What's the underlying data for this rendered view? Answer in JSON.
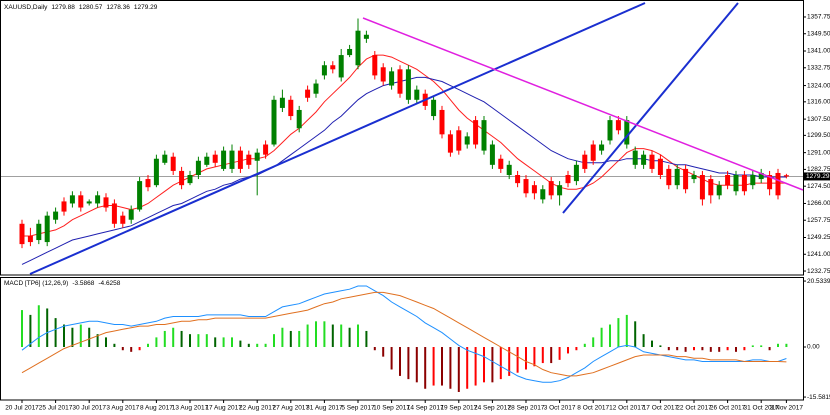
{
  "chart_data": [
    {
      "type": "candlestick",
      "title": "XAUUSD,Daily",
      "categories": [
        "20 Jul 2017",
        null,
        null,
        null,
        "25 Jul 2017",
        null,
        null,
        null,
        "30 Jul 2017",
        null,
        null,
        null,
        "3 Aug 2017",
        null,
        null,
        null,
        "8 Aug 2017",
        null,
        null,
        null,
        "13 Aug 2017",
        null,
        null,
        null,
        "17 Aug 2017",
        null,
        null,
        null,
        "22 Aug 2017",
        null,
        null,
        null,
        "27 Aug 2017",
        null,
        null,
        null,
        "31 Aug 2017",
        null,
        null,
        null,
        "5 Sep 2017",
        null,
        null,
        null,
        "10 Sep 2017",
        null,
        null,
        null,
        "14 Sep 2017",
        null,
        null,
        null,
        "19 Sep 2017",
        null,
        null,
        null,
        "24 Sep 2017",
        null,
        null,
        null,
        "28 Sep 2017",
        null,
        null,
        null,
        "3 Oct 2017",
        null,
        null,
        null,
        "8 Oct 2017",
        null,
        null,
        null,
        "12 Oct 2017",
        null,
        null,
        null,
        "17 Oct 2017",
        null,
        null,
        null,
        "22 Oct 2017",
        null,
        null,
        null,
        "26 Oct 2017",
        null,
        null,
        null,
        "31 Oct 2017",
        null,
        null,
        "3 Nov 2017"
      ],
      "open": [
        1256,
        1250,
        1248,
        1247,
        1258,
        1267,
        1266,
        1270,
        1266,
        1266,
        1269,
        1266,
        1260,
        1258,
        1263,
        1278,
        1275,
        1286,
        1289,
        1282,
        1276,
        1280,
        1285,
        1290,
        1283,
        1283,
        1292,
        1290,
        1287,
        1295,
        1295,
        1313,
        1317,
        1303,
        1322,
        1320,
        1329,
        1334,
        1328,
        1339,
        1334,
        1347,
        1339,
        1333,
        1324,
        1332,
        1317,
        1317,
        1320,
        1309,
        1312,
        1300,
        1302,
        1295,
        1307,
        1292,
        1285,
        1288,
        1280,
        1280,
        1278,
        1275,
        1268,
        1277,
        1270,
        1280,
        1277,
        1290,
        1295,
        1292,
        1297,
        1307,
        1295,
        1285,
        1285,
        1290,
        1288,
        1283,
        1275,
        1283,
        1278,
        1280,
        1278,
        1270,
        1280,
        1272,
        1280,
        1275,
        1278,
        1280,
        1281,
        1279.88
      ],
      "high": [
        1258,
        1254,
        1258,
        1262,
        1264,
        1269,
        1272,
        1272,
        1268,
        1272,
        1271,
        1268,
        1262,
        1265,
        1279,
        1280,
        1290,
        1292,
        1291,
        1284,
        1282,
        1289,
        1291,
        1292,
        1294,
        1295,
        1294,
        1292,
        1293,
        1297,
        1319,
        1322,
        1319,
        1314,
        1324,
        1327,
        1336,
        1336,
        1342,
        1344,
        1357,
        1351,
        1341,
        1335,
        1333,
        1334,
        1334,
        1324,
        1322,
        1319,
        1314,
        1302,
        1304,
        1301,
        1309,
        1309,
        1297,
        1290,
        1287,
        1282,
        1280,
        1277,
        1275,
        1279,
        1277,
        1282,
        1287,
        1292,
        1297,
        1297,
        1309,
        1309,
        1309,
        1294,
        1292,
        1292,
        1290,
        1285,
        1285,
        1285,
        1282,
        1282,
        1280,
        1277,
        1282,
        1282,
        1282,
        1282,
        1283,
        1282,
        1283,
        1280.57
      ],
      "low": [
        1244,
        1245,
        1246,
        1245,
        1256,
        1260,
        1264,
        1262,
        1265,
        1264,
        1262,
        1254,
        1254,
        1256,
        1262,
        1272,
        1274,
        1285,
        1280,
        1273,
        1275,
        1278,
        1284,
        1284,
        1282,
        1281,
        1281,
        1283,
        1270,
        1288,
        1294,
        1311,
        1307,
        1301,
        1316,
        1318,
        1327,
        1330,
        1326,
        1338,
        1332,
        1345,
        1327,
        1324,
        1322,
        1318,
        1315,
        1315,
        1312,
        1307,
        1298,
        1289,
        1290,
        1293,
        1293,
        1290,
        1283,
        1281,
        1278,
        1274,
        1269,
        1268,
        1266,
        1268,
        1265,
        1274,
        1275,
        1281,
        1285,
        1290,
        1295,
        1300,
        1293,
        1283,
        1283,
        1281,
        1278,
        1273,
        1273,
        1271,
        1276,
        1265,
        1266,
        1268,
        1273,
        1270,
        1270,
        1273,
        1276,
        1270,
        1268,
        1278.36
      ],
      "close": [
        1246,
        1247,
        1256,
        1260,
        1262,
        1262,
        1270,
        1264,
        1267,
        1270,
        1264,
        1256,
        1256,
        1263,
        1277,
        1274,
        1288,
        1290,
        1282,
        1275,
        1280,
        1287,
        1289,
        1286,
        1292,
        1292,
        1283,
        1285,
        1291,
        1290,
        1317,
        1318,
        1309,
        1312,
        1318,
        1325,
        1334,
        1332,
        1339,
        1342,
        1351,
        1349,
        1329,
        1326,
        1331,
        1320,
        1332,
        1322,
        1314,
        1317,
        1300,
        1291,
        1292,
        1299,
        1295,
        1307,
        1295,
        1283,
        1285,
        1276,
        1271,
        1271,
        1273,
        1270,
        1275,
        1276,
        1285,
        1283,
        1287,
        1295,
        1307,
        1302,
        1307,
        1292,
        1290,
        1283,
        1280,
        1275,
        1283,
        1273,
        1280,
        1268,
        1270,
        1275,
        1275,
        1280,
        1272,
        1280,
        1281,
        1273,
        1270,
        1279.29
      ],
      "up_color": "#008000",
      "down_color": "#ff0000",
      "series": [
        {
          "color": "#ff2020",
          "values": [
            1250,
            1250,
            1251,
            1252,
            1253,
            1255,
            1258,
            1260,
            1262,
            1264,
            1265,
            1265,
            1264,
            1263,
            1264,
            1266,
            1269,
            1272,
            1275,
            1277,
            1279,
            1281,
            1283,
            1284,
            1285,
            1286,
            1287,
            1288,
            1288,
            1289,
            1292,
            1296,
            1300,
            1303,
            1307,
            1311,
            1316,
            1320,
            1324,
            1328,
            1333,
            1337,
            1339,
            1339,
            1338,
            1336,
            1334,
            1332,
            1329,
            1326,
            1322,
            1317,
            1312,
            1308,
            1305,
            1302,
            1299,
            1296,
            1292,
            1288,
            1285,
            1282,
            1279,
            1276,
            1274,
            1273,
            1273,
            1274,
            1276,
            1279,
            1283,
            1287,
            1291,
            1293,
            1293,
            1292,
            1290,
            1287,
            1284,
            1282,
            1280,
            1278,
            1276,
            1275,
            1275,
            1275,
            1275,
            1276,
            1276,
            1276,
            1276,
            1276
          ]
        },
        {
          "color": "#2020b0",
          "values": [
            1236,
            1238,
            1240,
            1242,
            1244,
            1246,
            1248,
            1249,
            1250,
            1251,
            1252,
            1253,
            1254,
            1255,
            1257,
            1259,
            1261,
            1263,
            1265,
            1266,
            1268,
            1270,
            1272,
            1273,
            1275,
            1276,
            1278,
            1279,
            1280,
            1282,
            1284,
            1287,
            1290,
            1293,
            1296,
            1299,
            1302,
            1306,
            1309,
            1313,
            1317,
            1320,
            1322,
            1324,
            1325,
            1326,
            1327,
            1328,
            1328,
            1327,
            1326,
            1324,
            1322,
            1320,
            1318,
            1316,
            1313,
            1310,
            1307,
            1304,
            1301,
            1298,
            1295,
            1292,
            1290,
            1288,
            1287,
            1286,
            1286,
            1286,
            1287,
            1287,
            1288,
            1288,
            1288,
            1287,
            1287,
            1286,
            1285,
            1285,
            1284,
            1283,
            1282,
            1281,
            1281,
            1280,
            1280,
            1280,
            1279,
            1279,
            1279,
            1279
          ]
        }
      ],
      "ylim": [
        1230.8,
        1366.1
      ],
      "yticks": [
        1357.75,
        {
          "value": 1349.5,
          "label": "1349.50"
        },
        {
          "value": 1341,
          "label": "1341.00"
        },
        1332.75,
        {
          "value": 1324,
          "label": "1324.00"
        },
        {
          "value": 1316,
          "label": "1316.00"
        },
        {
          "value": 1307.5,
          "label": "1307.50"
        },
        {
          "value": 1299.5,
          "label": "1299.50"
        },
        {
          "value": 1291,
          "label": "1291.00"
        },
        1282.75,
        {
          "value": 1274.5,
          "label": "1274.50"
        },
        {
          "value": 1266,
          "label": "1266.00"
        },
        1257.75,
        1249.25,
        {
          "value": 1241,
          "label": "1241.00"
        },
        1232.75
      ],
      "price_line_color": "#a0a0a0"
    },
    {
      "type": "macd",
      "title": "MACD [TP6] (12,26,9)",
      "histogram": [
        11.5,
        10,
        13,
        12,
        9,
        7,
        6,
        7,
        6,
        4,
        3,
        1,
        -1,
        -1.5,
        -1,
        1,
        3,
        5,
        6,
        5,
        4,
        4,
        4,
        3,
        3,
        3,
        2,
        1,
        1,
        1,
        4,
        6,
        5,
        5,
        7,
        8,
        8,
        7,
        7,
        6,
        7,
        5,
        -1,
        -3,
        -7,
        -9,
        -10,
        -11,
        -13,
        -12,
        -12,
        -13,
        -14,
        -13,
        -12,
        -11,
        -11,
        -10,
        -9,
        -8,
        -7,
        -6,
        -5,
        -5,
        -4,
        -2,
        -1,
        1,
        3,
        6,
        7,
        9,
        10,
        8,
        4,
        2,
        0.5,
        -1,
        -1,
        -1.5,
        -1,
        -1,
        -1.5,
        -1.5,
        -1,
        -1.5,
        -1,
        0.5,
        0.5,
        -1,
        1,
        1
      ],
      "histogram_colors": {
        "positive_rising": "#22dd22",
        "positive_falling": "#006400",
        "negative_falling": "#8b0000",
        "negative_rising": "#ff0000"
      },
      "series": [
        {
          "color": "#1e90ff",
          "values": [
            -1,
            1,
            3,
            4.5,
            5.5,
            6.5,
            7,
            7.5,
            8,
            8,
            7.5,
            7,
            7,
            6.5,
            7,
            7.5,
            8,
            9,
            9.5,
            9.5,
            9.5,
            9.5,
            10,
            10,
            10,
            10,
            10,
            9.5,
            9.5,
            9.5,
            11,
            12.5,
            13,
            13.5,
            14.5,
            15.5,
            16.5,
            17,
            17.5,
            18,
            19,
            19,
            17.5,
            16,
            14,
            12.5,
            11,
            9.5,
            7.5,
            6,
            4.5,
            2.5,
            0.5,
            -1,
            -2,
            -3,
            -4.5,
            -6,
            -7.5,
            -9,
            -10,
            -10.5,
            -11,
            -11,
            -10.5,
            -9.5,
            -8,
            -6.5,
            -4.5,
            -3,
            -1.5,
            0,
            0.5,
            0,
            -1.5,
            -2,
            -2.5,
            -3,
            -3.5,
            -4,
            -4,
            -4.5,
            -4.5,
            -4.5,
            -4.5,
            -4.5,
            -4.5,
            -4,
            -4,
            -4.5,
            -4.5,
            -3.5868
          ]
        },
        {
          "color": "#e07020",
          "values": [
            -8,
            -6.5,
            -5,
            -3.5,
            -2,
            -0.5,
            0.5,
            1.5,
            2.5,
            3.5,
            4.5,
            5,
            5.5,
            6,
            6.5,
            6.5,
            7,
            7,
            7.5,
            8,
            8,
            8.5,
            8.5,
            9,
            9,
            9,
            9,
            9,
            9,
            9,
            9.5,
            10,
            10.5,
            11,
            11.5,
            12.5,
            13.5,
            14,
            15,
            15.5,
            16,
            16.5,
            17,
            17,
            16.5,
            16,
            15,
            14,
            13,
            12,
            10.5,
            9,
            7.5,
            6,
            4.5,
            3,
            1.5,
            0,
            -1.5,
            -3,
            -4.5,
            -5.5,
            -7,
            -8,
            -8.5,
            -9,
            -9,
            -8.5,
            -8,
            -7,
            -6,
            -5,
            -4,
            -3,
            -2.5,
            -2.5,
            -2.5,
            -2.5,
            -3,
            -3,
            -3.5,
            -3.5,
            -4,
            -4,
            -4,
            -4,
            -4.5,
            -4.5,
            -4.5,
            -4.5,
            -4.5,
            -4.6258
          ]
        }
      ],
      "ylim": [
        -16.5,
        21.8
      ],
      "yticks": [
        20.5339,
        {
          "value": 0,
          "label": "0.00"
        },
        -15.5815
      ]
    }
  ]
}
